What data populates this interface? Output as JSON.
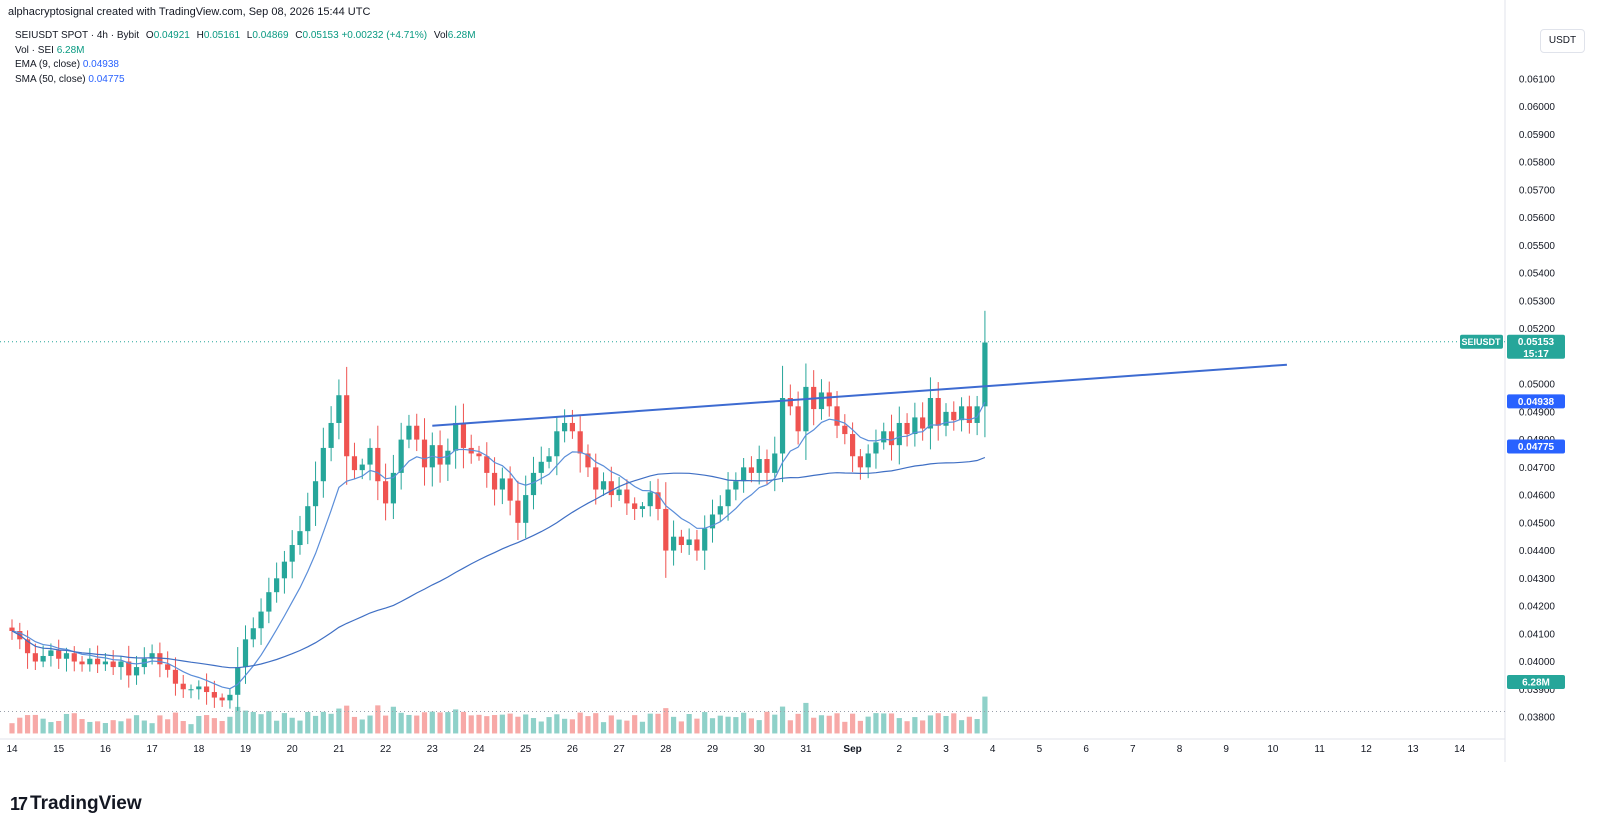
{
  "header": {
    "credit": "alphacryptosignal created with TradingView.com, Sep 08, 2026 15:44 UTC"
  },
  "legend": {
    "symbol": "SEIUSDT SPOT · 4h · Bybit",
    "o_label": "O",
    "o_value": "0.04921",
    "h_label": "H",
    "h_value": "0.05161",
    "l_label": "L",
    "l_value": "0.04869",
    "c_label": "C",
    "c_value": "0.05153",
    "change": "+0.00232 (+4.71%)",
    "vol_label": "Vol",
    "vol_value": "6.28M",
    "vol_line_label": "Vol · SEI",
    "vol_line_value": "6.28M",
    "ema_label": "EMA (9, close)",
    "ema_value": "0.04938",
    "sma_label": "SMA (50, close)",
    "sma_value": "0.04775"
  },
  "currency_button": "USDT",
  "brand": {
    "logo": "17",
    "name": "TradingView"
  },
  "colors": {
    "up": "#26a69a",
    "down": "#ef5350",
    "trendline": "#3d6bd1",
    "ema": "#5b8ed9",
    "sma": "#3f6fc4",
    "vol_up": "#8fd1c9",
    "vol_down": "#f7a9a7"
  },
  "chart_data": {
    "type": "candlestick",
    "title": "SEIUSDT SPOT · 4h · Bybit",
    "ylim": [
      0.0375,
      0.0618
    ],
    "y_ticks": [
      "0.06100",
      "0.06000",
      "0.05900",
      "0.05800",
      "0.05700",
      "0.05600",
      "0.05500",
      "0.05400",
      "0.05300",
      "0.05200",
      "0.05000",
      "0.04900",
      "0.04800",
      "0.04700",
      "0.04600",
      "0.04500",
      "0.04400",
      "0.04300",
      "0.04200",
      "0.04100",
      "0.04000",
      "0.03900",
      "0.03800"
    ],
    "x_ticks": [
      "14",
      "15",
      "16",
      "17",
      "18",
      "19",
      "20",
      "21",
      "22",
      "23",
      "24",
      "25",
      "26",
      "27",
      "28",
      "29",
      "30",
      "31",
      "Sep",
      "2",
      "3",
      "4",
      "5",
      "6",
      "7",
      "8",
      "9",
      "10",
      "11",
      "12",
      "13",
      "14"
    ],
    "price_label": {
      "name": "SEIUSDT",
      "value": "0.05153",
      "countdown": "15:17"
    },
    "ema_label": "0.04938",
    "sma_label": "0.04775",
    "volume_label": "6.28M",
    "last_price": 0.05153,
    "volume_avg_level": 0.0382,
    "closes": [
      0.0411,
      0.0408,
      0.0403,
      0.04,
      0.0402,
      0.0404,
      0.0401,
      0.0403,
      0.04,
      0.0399,
      0.0401,
      0.0399,
      0.04,
      0.0398,
      0.04,
      0.0395,
      0.0398,
      0.0401,
      0.0403,
      0.0399,
      0.0397,
      0.0392,
      0.039,
      0.039,
      0.0391,
      0.0389,
      0.0387,
      0.0386,
      0.0388,
      0.0398,
      0.0408,
      0.0412,
      0.0418,
      0.0425,
      0.043,
      0.0436,
      0.0442,
      0.0447,
      0.0456,
      0.0465,
      0.0477,
      0.0486,
      0.0496,
      0.0474,
      0.0469,
      0.0471,
      0.0477,
      0.0465,
      0.0457,
      0.0468,
      0.048,
      0.0485,
      0.048,
      0.047,
      0.0478,
      0.0471,
      0.0476,
      0.0486,
      0.0477,
      0.0475,
      0.0474,
      0.0468,
      0.0462,
      0.0466,
      0.0458,
      0.045,
      0.046,
      0.0468,
      0.0472,
      0.0474,
      0.0483,
      0.0486,
      0.0483,
      0.0475,
      0.047,
      0.0462,
      0.0465,
      0.046,
      0.0462,
      0.0457,
      0.0455,
      0.0456,
      0.0461,
      0.0455,
      0.044,
      0.0445,
      0.0442,
      0.0444,
      0.044,
      0.0448,
      0.0453,
      0.0456,
      0.0462,
      0.0465,
      0.047,
      0.0468,
      0.0473,
      0.0468,
      0.0475,
      0.0495,
      0.0492,
      0.0483,
      0.0499,
      0.0491,
      0.0497,
      0.0492,
      0.0485,
      0.0482,
      0.0474,
      0.047,
      0.0475,
      0.0479,
      0.0483,
      0.0478,
      0.0486,
      0.0482,
      0.0488,
      0.0484,
      0.0495,
      0.0485,
      0.049,
      0.0487,
      0.0492,
      0.0486,
      0.0492,
      0.0515
    ],
    "ema9_last": 0.04938,
    "sma50_last": 0.04775,
    "trendline": {
      "start_date": "Aug 23",
      "start_price": 0.0485,
      "end_date": "Sep 10",
      "end_price": 0.0507
    }
  }
}
